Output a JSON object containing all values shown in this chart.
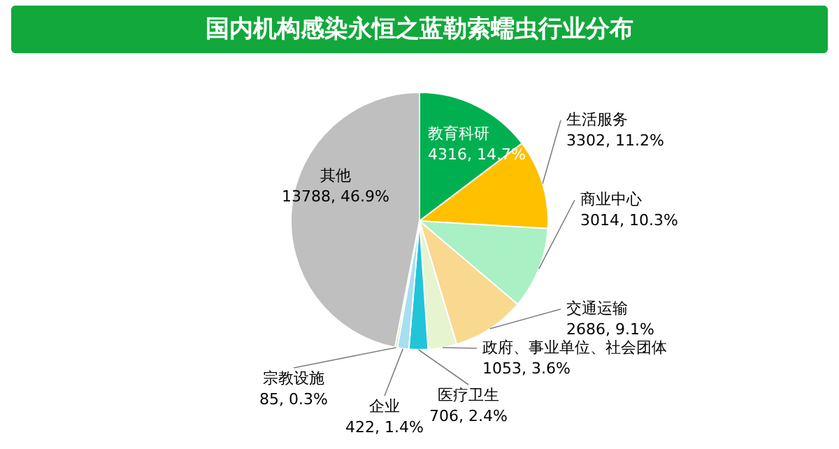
{
  "chart_data": {
    "type": "pie",
    "title": "国内机构感染永恒之蓝勒索蠕虫行业分布",
    "categories": [
      "教育科研",
      "生活服务",
      "商业中心",
      "交通运输",
      "政府、事业单位、社会团体",
      "医疗卫生",
      "企业",
      "宗教设施",
      "其他"
    ],
    "values": [
      4316,
      3302,
      3014,
      2686,
      1053,
      706,
      422,
      85,
      13788
    ],
    "colors": [
      "#00b050",
      "#ffc000",
      "#a9f0c4",
      "#f9d88f",
      "#e6f5cf",
      "#22c4d8",
      "#a6dff0",
      "#c5e6a0",
      "#bfbfbf"
    ],
    "value_labels": [
      "4316, 14.7%",
      "3302, 11.2%",
      "3014, 10.3%",
      "2686, 9.1%",
      "1053, 3.6%",
      "706, 2.4%",
      "422, 1.4%",
      "85, 0.3%",
      "13788, 46.9%"
    ]
  }
}
